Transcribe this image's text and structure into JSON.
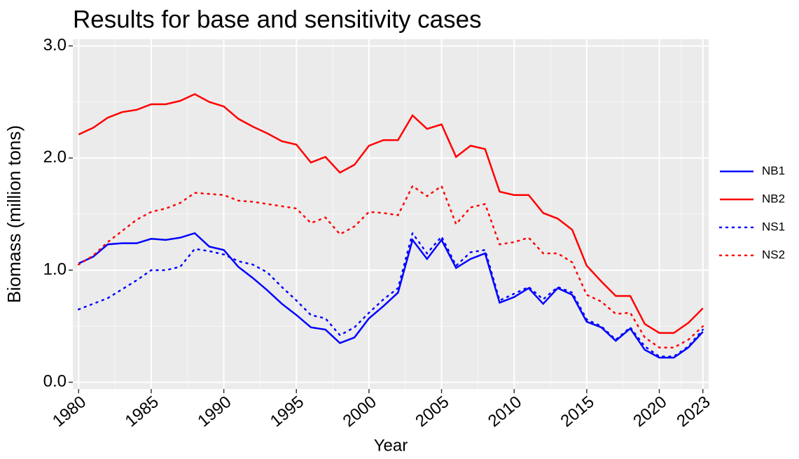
{
  "chart_data": {
    "type": "line",
    "title": "Results for base and sensitivity cases",
    "x_label": "Year",
    "y_label": "Biomass (million tons)",
    "x": [
      1980,
      1981,
      1982,
      1983,
      1984,
      1985,
      1986,
      1987,
      1988,
      1989,
      1990,
      1991,
      1992,
      1993,
      1994,
      1995,
      1996,
      1997,
      1998,
      1999,
      2000,
      2001,
      2002,
      2003,
      2004,
      2005,
      2006,
      2007,
      2008,
      2009,
      2010,
      2011,
      2012,
      2013,
      2014,
      2015,
      2016,
      2017,
      2018,
      2019,
      2020,
      2021,
      2022,
      2023
    ],
    "series": [
      {
        "name": "NB1",
        "color": "#0000ff",
        "linetype": "solid",
        "values": [
          1.06,
          1.12,
          1.23,
          1.24,
          1.24,
          1.28,
          1.27,
          1.29,
          1.33,
          1.21,
          1.18,
          1.03,
          0.93,
          0.82,
          0.7,
          0.6,
          0.49,
          0.47,
          0.35,
          0.4,
          0.57,
          0.68,
          0.8,
          1.27,
          1.1,
          1.27,
          1.02,
          1.1,
          1.15,
          0.71,
          0.76,
          0.84,
          0.7,
          0.84,
          0.78,
          0.54,
          0.49,
          0.37,
          0.48,
          0.29,
          0.22,
          0.22,
          0.31,
          0.45
        ]
      },
      {
        "name": "NB2",
        "color": "#ff0000",
        "linetype": "solid",
        "values": [
          2.21,
          2.27,
          2.36,
          2.41,
          2.43,
          2.48,
          2.48,
          2.51,
          2.57,
          2.5,
          2.46,
          2.35,
          2.28,
          2.22,
          2.15,
          2.12,
          1.96,
          2.01,
          1.87,
          1.94,
          2.11,
          2.16,
          2.16,
          2.38,
          2.26,
          2.3,
          2.01,
          2.11,
          2.08,
          1.7,
          1.67,
          1.67,
          1.51,
          1.46,
          1.36,
          1.04,
          0.9,
          0.77,
          0.77,
          0.52,
          0.44,
          0.44,
          0.53,
          0.66
        ]
      },
      {
        "name": "NS1",
        "color": "#0000ff",
        "linetype": "dotted",
        "values": [
          0.65,
          0.7,
          0.75,
          0.83,
          0.91,
          1.0,
          1.0,
          1.03,
          1.19,
          1.17,
          1.14,
          1.08,
          1.05,
          0.98,
          0.85,
          0.73,
          0.6,
          0.57,
          0.42,
          0.49,
          0.62,
          0.74,
          0.84,
          1.33,
          1.15,
          1.3,
          1.04,
          1.16,
          1.18,
          0.73,
          0.79,
          0.85,
          0.74,
          0.85,
          0.8,
          0.56,
          0.5,
          0.38,
          0.49,
          0.32,
          0.23,
          0.23,
          0.32,
          0.47
        ]
      },
      {
        "name": "NS2",
        "color": "#ff0000",
        "linetype": "dotted",
        "values": [
          1.05,
          1.13,
          1.25,
          1.35,
          1.45,
          1.52,
          1.55,
          1.6,
          1.69,
          1.68,
          1.67,
          1.62,
          1.61,
          1.59,
          1.57,
          1.55,
          1.42,
          1.47,
          1.32,
          1.39,
          1.52,
          1.51,
          1.49,
          1.75,
          1.66,
          1.75,
          1.41,
          1.56,
          1.59,
          1.23,
          1.25,
          1.29,
          1.15,
          1.15,
          1.07,
          0.78,
          0.72,
          0.61,
          0.62,
          0.4,
          0.31,
          0.31,
          0.38,
          0.5
        ]
      }
    ],
    "xlim": [
      1979.6,
      2023.4
    ],
    "xticks": [
      1980,
      1985,
      1990,
      1995,
      2000,
      2005,
      2010,
      2015,
      2020,
      2023
    ],
    "ylim": [
      -0.06,
      3.06
    ],
    "yticks": [
      {
        "value": 0,
        "label": "0.0"
      },
      {
        "value": 1,
        "label": "1.0"
      },
      {
        "value": 2,
        "label": "2.0"
      },
      {
        "value": 3,
        "label": "3.0"
      }
    ],
    "grid": true,
    "legend_position": "right"
  }
}
